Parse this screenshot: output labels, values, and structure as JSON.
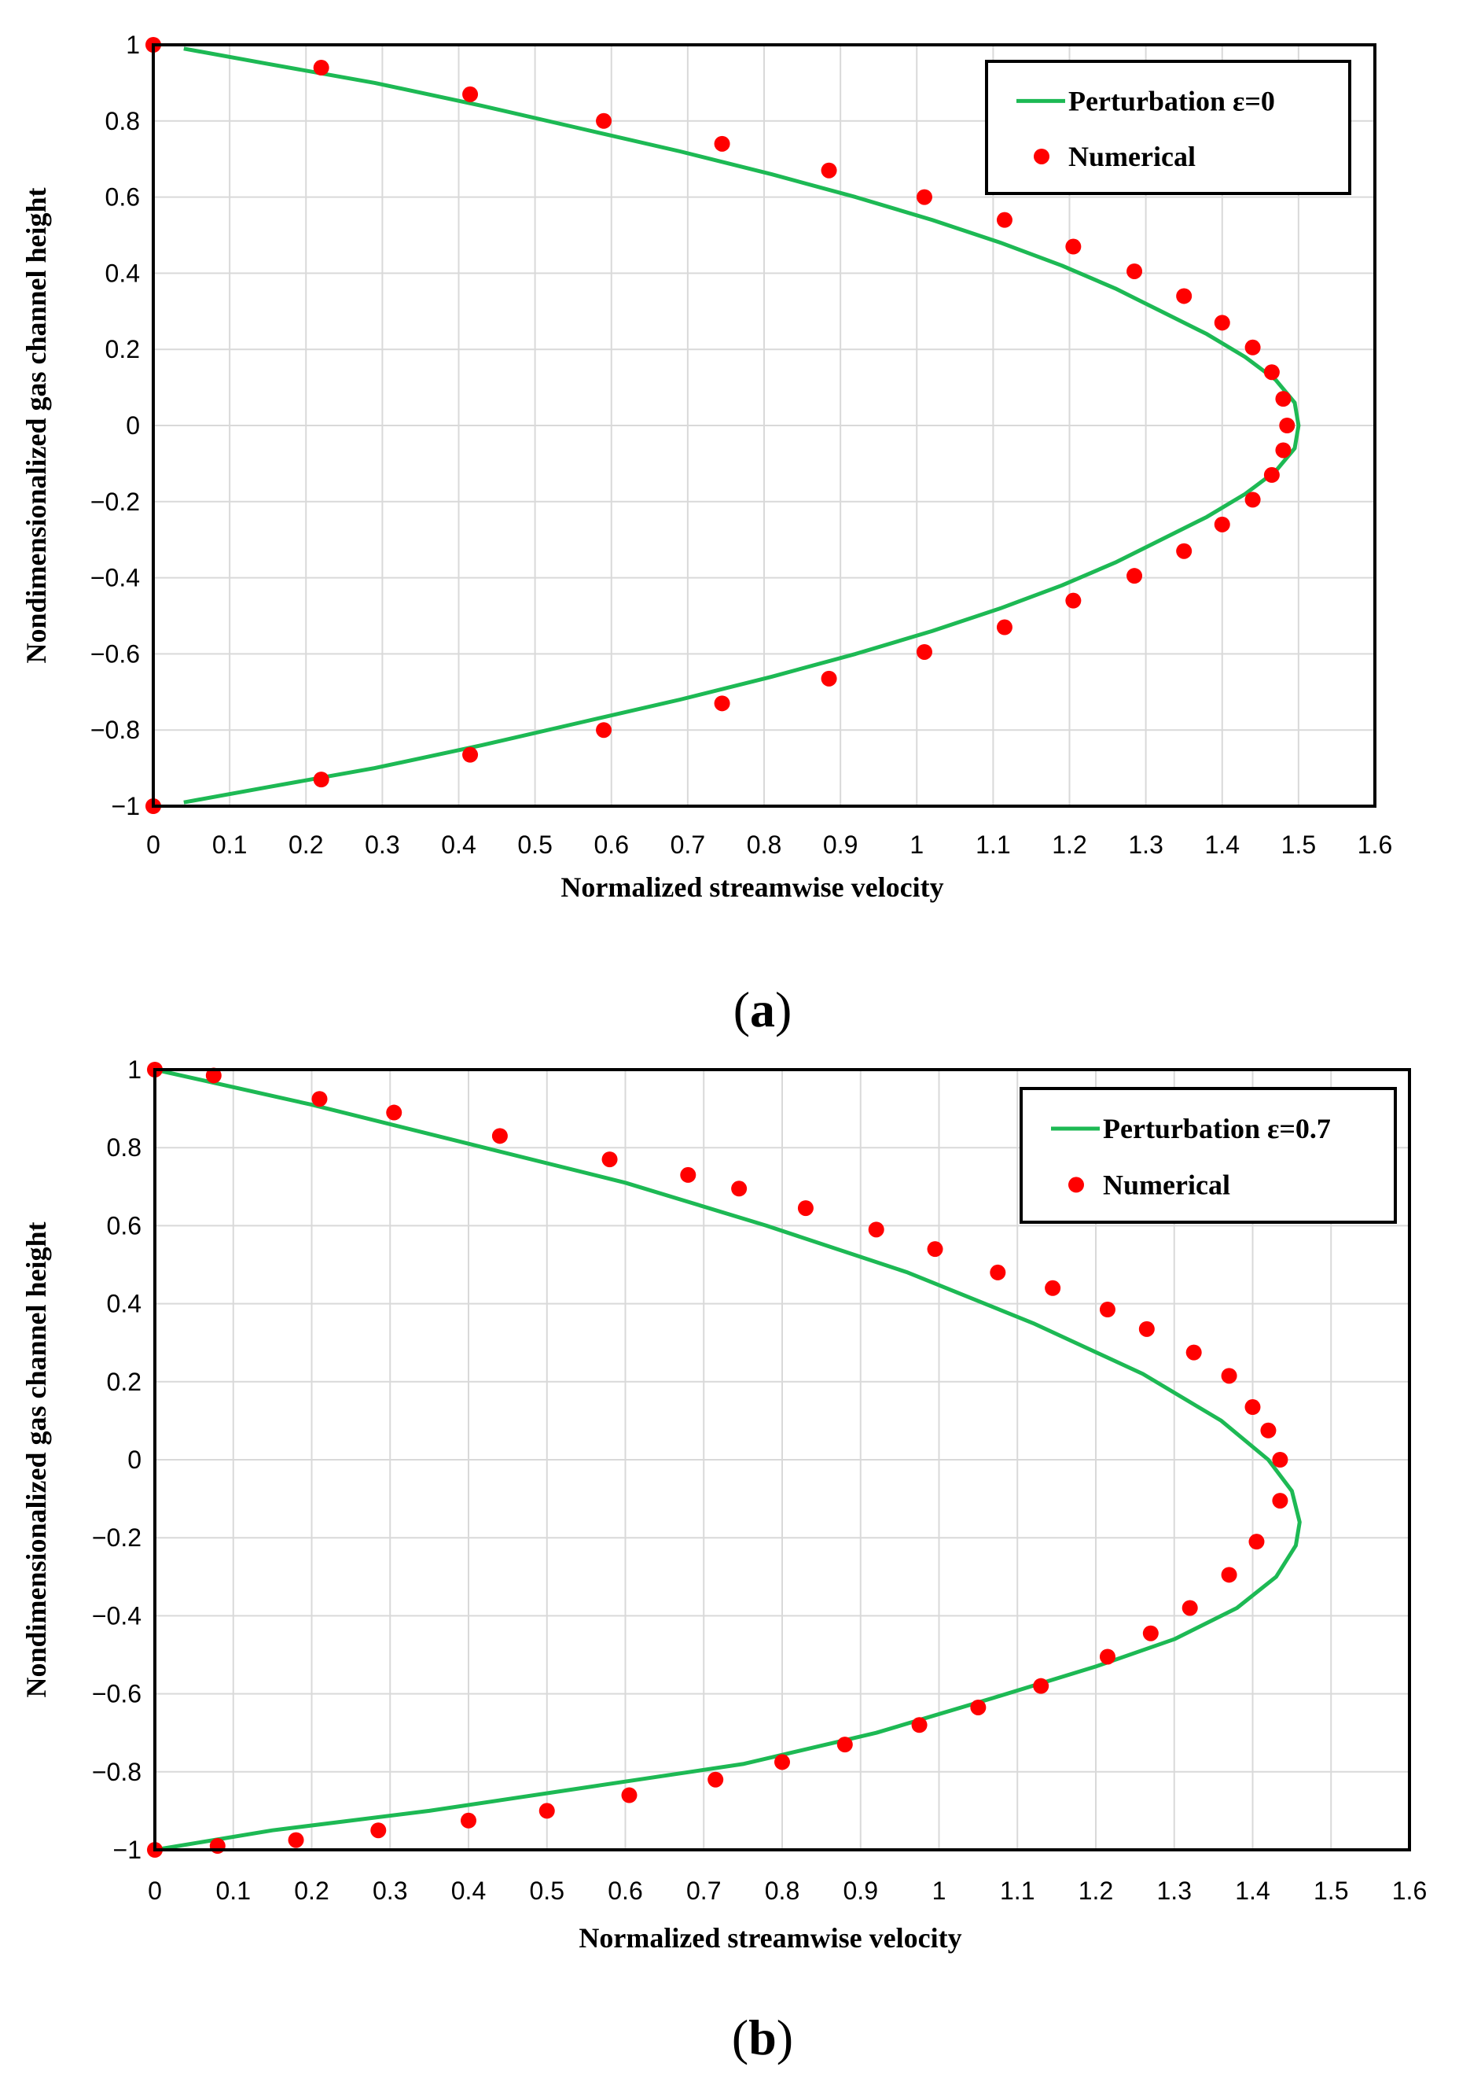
{
  "colors": {
    "curve": "#1db954",
    "marker": "#ff0000",
    "grid": "#d9d9d9",
    "frame": "#000000"
  },
  "chart_data": [
    {
      "type": "line",
      "caption": "(a)",
      "caption_letter": "a",
      "xlabel": "Normalized streamwise  velocity",
      "ylabel": "Nondimensionalized gas channel height",
      "xlim": [
        0,
        1.6
      ],
      "ylim": [
        -1,
        1
      ],
      "grid": true,
      "legend_position": "top-right",
      "xticks": [
        0,
        0.1,
        0.2,
        0.3,
        0.4,
        0.5,
        0.6,
        0.7,
        0.8,
        0.9,
        1,
        1.1,
        1.2,
        1.3,
        1.4,
        1.5,
        1.6
      ],
      "xtick_labels": [
        "0",
        "0.1",
        "0.2",
        "0.3",
        "0.4",
        "0.5",
        "0.6",
        "0.7",
        "0.8",
        "0.9",
        "1",
        "1.1",
        "1.2",
        "1.3",
        "1.4",
        "1.5",
        "1.6"
      ],
      "yticks": [
        1,
        0.8,
        0.6,
        0.4,
        0.2,
        0,
        -0.2,
        -0.4,
        -0.6,
        -0.8,
        -1
      ],
      "ytick_labels": [
        "1",
        "0.8",
        "0.6",
        "0.4",
        "0.2",
        "0",
        "−0.2",
        "−0.4",
        "−0.6",
        "−0.8",
        "−1"
      ],
      "series": [
        {
          "name": "Perturbation ε=0",
          "kind": "line",
          "x": [
            0.04,
            0.15,
            0.29,
            0.43,
            0.56,
            0.69,
            0.81,
            0.92,
            1.02,
            1.11,
            1.19,
            1.26,
            1.32,
            1.38,
            1.43,
            1.47,
            1.495,
            1.5,
            1.495,
            1.47,
            1.43,
            1.38,
            1.32,
            1.26,
            1.19,
            1.11,
            1.02,
            0.92,
            0.81,
            0.69,
            0.56,
            0.43,
            0.29,
            0.15,
            0.04
          ],
          "y": [
            0.99,
            0.95,
            0.9,
            0.84,
            0.78,
            0.72,
            0.66,
            0.6,
            0.54,
            0.48,
            0.42,
            0.36,
            0.3,
            0.24,
            0.18,
            0.12,
            0.06,
            0.0,
            -0.06,
            -0.12,
            -0.18,
            -0.24,
            -0.3,
            -0.36,
            -0.42,
            -0.48,
            -0.54,
            -0.6,
            -0.66,
            -0.72,
            -0.78,
            -0.84,
            -0.9,
            -0.95,
            -0.99
          ]
        },
        {
          "name": "Numerical",
          "kind": "scatter",
          "x": [
            0,
            0.22,
            0.415,
            0.59,
            0.745,
            0.885,
            1.01,
            1.115,
            1.205,
            1.285,
            1.35,
            1.4,
            1.44,
            1.465,
            1.48,
            1.485,
            1.48,
            1.465,
            1.44,
            1.4,
            1.35,
            1.285,
            1.205,
            1.115,
            1.01,
            0.885,
            0.745,
            0.59,
            0.415,
            0.22,
            0
          ],
          "y": [
            1.0,
            0.94,
            0.87,
            0.8,
            0.74,
            0.67,
            0.6,
            0.54,
            0.47,
            0.405,
            0.34,
            0.27,
            0.205,
            0.14,
            0.07,
            0.0,
            -0.065,
            -0.13,
            -0.195,
            -0.26,
            -0.33,
            -0.395,
            -0.46,
            -0.53,
            -0.595,
            -0.665,
            -0.73,
            -0.8,
            -0.865,
            -0.93,
            -1.0
          ]
        }
      ]
    },
    {
      "type": "line",
      "caption": "(b)",
      "caption_letter": "b",
      "xlabel": "Normalized streamwise  velocity",
      "ylabel": "Nondimensionalized gas channel height",
      "xlim": [
        0,
        1.6
      ],
      "ylim": [
        -1,
        1
      ],
      "grid": true,
      "legend_position": "top-right",
      "xticks": [
        0,
        0.1,
        0.2,
        0.3,
        0.4,
        0.5,
        0.6,
        0.7,
        0.8,
        0.9,
        1,
        1.1,
        1.2,
        1.3,
        1.4,
        1.5,
        1.6
      ],
      "xtick_labels": [
        "0",
        "0.1",
        "0.2",
        "0.3",
        "0.4",
        "0.5",
        "0.6",
        "0.7",
        "0.8",
        "0.9",
        "1",
        "1.1",
        "1.2",
        "1.3",
        "1.4",
        "1.5",
        "1.6"
      ],
      "yticks": [
        1,
        0.8,
        0.6,
        0.4,
        0.2,
        0,
        -0.2,
        -0.4,
        -0.6,
        -0.8,
        -1
      ],
      "ytick_labels": [
        "1",
        "0.8",
        "0.6",
        "0.4",
        "0.2",
        "0",
        "−0.2",
        "−0.4",
        "−0.6",
        "−0.8",
        "−1"
      ],
      "series": [
        {
          "name": "Perturbation ε=0.7",
          "kind": "line",
          "x": [
            0.0,
            0.2,
            0.4,
            0.6,
            0.78,
            0.96,
            1.12,
            1.26,
            1.36,
            1.42,
            1.45,
            1.46,
            1.455,
            1.43,
            1.38,
            1.3,
            1.2,
            1.07,
            0.92,
            0.75,
            0.55,
            0.35,
            0.15,
            0.0
          ],
          "y": [
            1.0,
            0.91,
            0.81,
            0.71,
            0.6,
            0.48,
            0.35,
            0.22,
            0.1,
            0.0,
            -0.08,
            -0.16,
            -0.22,
            -0.3,
            -0.38,
            -0.46,
            -0.53,
            -0.61,
            -0.7,
            -0.78,
            -0.84,
            -0.9,
            -0.95,
            -1.0
          ]
        },
        {
          "name": "Numerical",
          "kind": "scatter",
          "x": [
            0,
            0.075,
            0.21,
            0.305,
            0.44,
            0.58,
            0.68,
            0.745,
            0.83,
            0.92,
            0.995,
            1.075,
            1.145,
            1.215,
            1.265,
            1.325,
            1.37,
            1.4,
            1.42,
            1.435,
            1.435,
            1.405,
            1.37,
            1.32,
            1.27,
            1.215,
            1.13,
            1.05,
            0.975,
            0.88,
            0.8,
            0.715,
            0.605,
            0.5,
            0.4,
            0.285,
            0.18,
            0.08,
            0
          ],
          "y": [
            1.0,
            0.985,
            0.925,
            0.89,
            0.83,
            0.77,
            0.73,
            0.695,
            0.645,
            0.59,
            0.54,
            0.48,
            0.44,
            0.385,
            0.335,
            0.275,
            0.215,
            0.135,
            0.075,
            0.0,
            -0.105,
            -0.21,
            -0.295,
            -0.38,
            -0.445,
            -0.505,
            -0.58,
            -0.635,
            -0.68,
            -0.73,
            -0.775,
            -0.82,
            -0.86,
            -0.9,
            -0.925,
            -0.95,
            -0.975,
            -0.99,
            -1.0
          ]
        }
      ]
    }
  ]
}
